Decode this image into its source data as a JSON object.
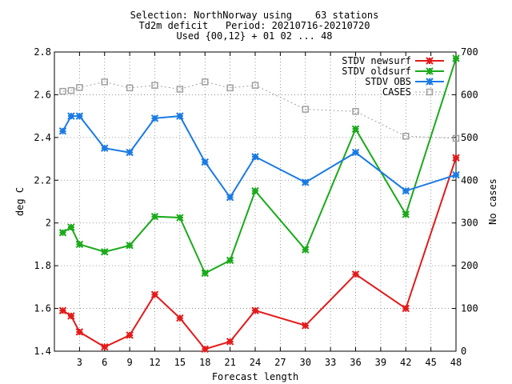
{
  "chart_data": {
    "type": "line",
    "title_lines": [
      "Selection: NorthNorway using    63 stations",
      "Td2m deficit   Period: 20210716-20210720",
      "Used {00,12} + 01 02 ... 48"
    ],
    "xlabel": "Forecast length",
    "ylabel": "deg C",
    "y2label": "No cases",
    "xlim": [
      0,
      48
    ],
    "ylim": [
      1.4,
      2.8
    ],
    "y2lim": [
      0,
      700
    ],
    "x_ticks": [
      3,
      6,
      9,
      12,
      15,
      18,
      21,
      24,
      27,
      30,
      33,
      36,
      39,
      42,
      45,
      48
    ],
    "y_ticks": [
      "1.4",
      "1.6",
      "1.8",
      "2",
      "2.2",
      "2.4",
      "2.6",
      "2.8"
    ],
    "y2_ticks": [
      "0",
      "100",
      "200",
      "300",
      "400",
      "500",
      "600",
      "700"
    ],
    "legend_position": "top-right",
    "x": [
      1,
      2,
      3,
      6,
      9,
      12,
      15,
      18,
      21,
      24,
      30,
      36,
      42,
      48
    ],
    "series": [
      {
        "name": "STDV newsurf",
        "color": "#e41a1a",
        "axis": "left",
        "marker": "star",
        "values": [
          1.59,
          1.565,
          1.49,
          1.42,
          1.475,
          1.665,
          1.555,
          1.41,
          1.445,
          1.59,
          1.52,
          1.76,
          1.6,
          2.305
        ]
      },
      {
        "name": "STDV oldsurf",
        "color": "#1aaa1a",
        "axis": "left",
        "marker": "star",
        "values": [
          1.955,
          1.98,
          1.9,
          1.865,
          1.895,
          2.03,
          2.025,
          1.765,
          1.825,
          2.15,
          1.875,
          2.44,
          2.04,
          2.77
        ]
      },
      {
        "name": "STDV OBS",
        "color": "#1a7ae4",
        "axis": "left",
        "marker": "star",
        "values": [
          2.43,
          2.5,
          2.5,
          2.35,
          2.33,
          2.49,
          2.5,
          2.285,
          2.12,
          2.31,
          2.19,
          2.33,
          2.15,
          2.225
        ]
      },
      {
        "name": "CASES",
        "color": "#a0a0a0",
        "axis": "right",
        "marker": "square",
        "dashed": true,
        "values": [
          608,
          610,
          617,
          630,
          616,
          622,
          613,
          630,
          616,
          622,
          566,
          561,
          503,
          498
        ]
      }
    ]
  }
}
